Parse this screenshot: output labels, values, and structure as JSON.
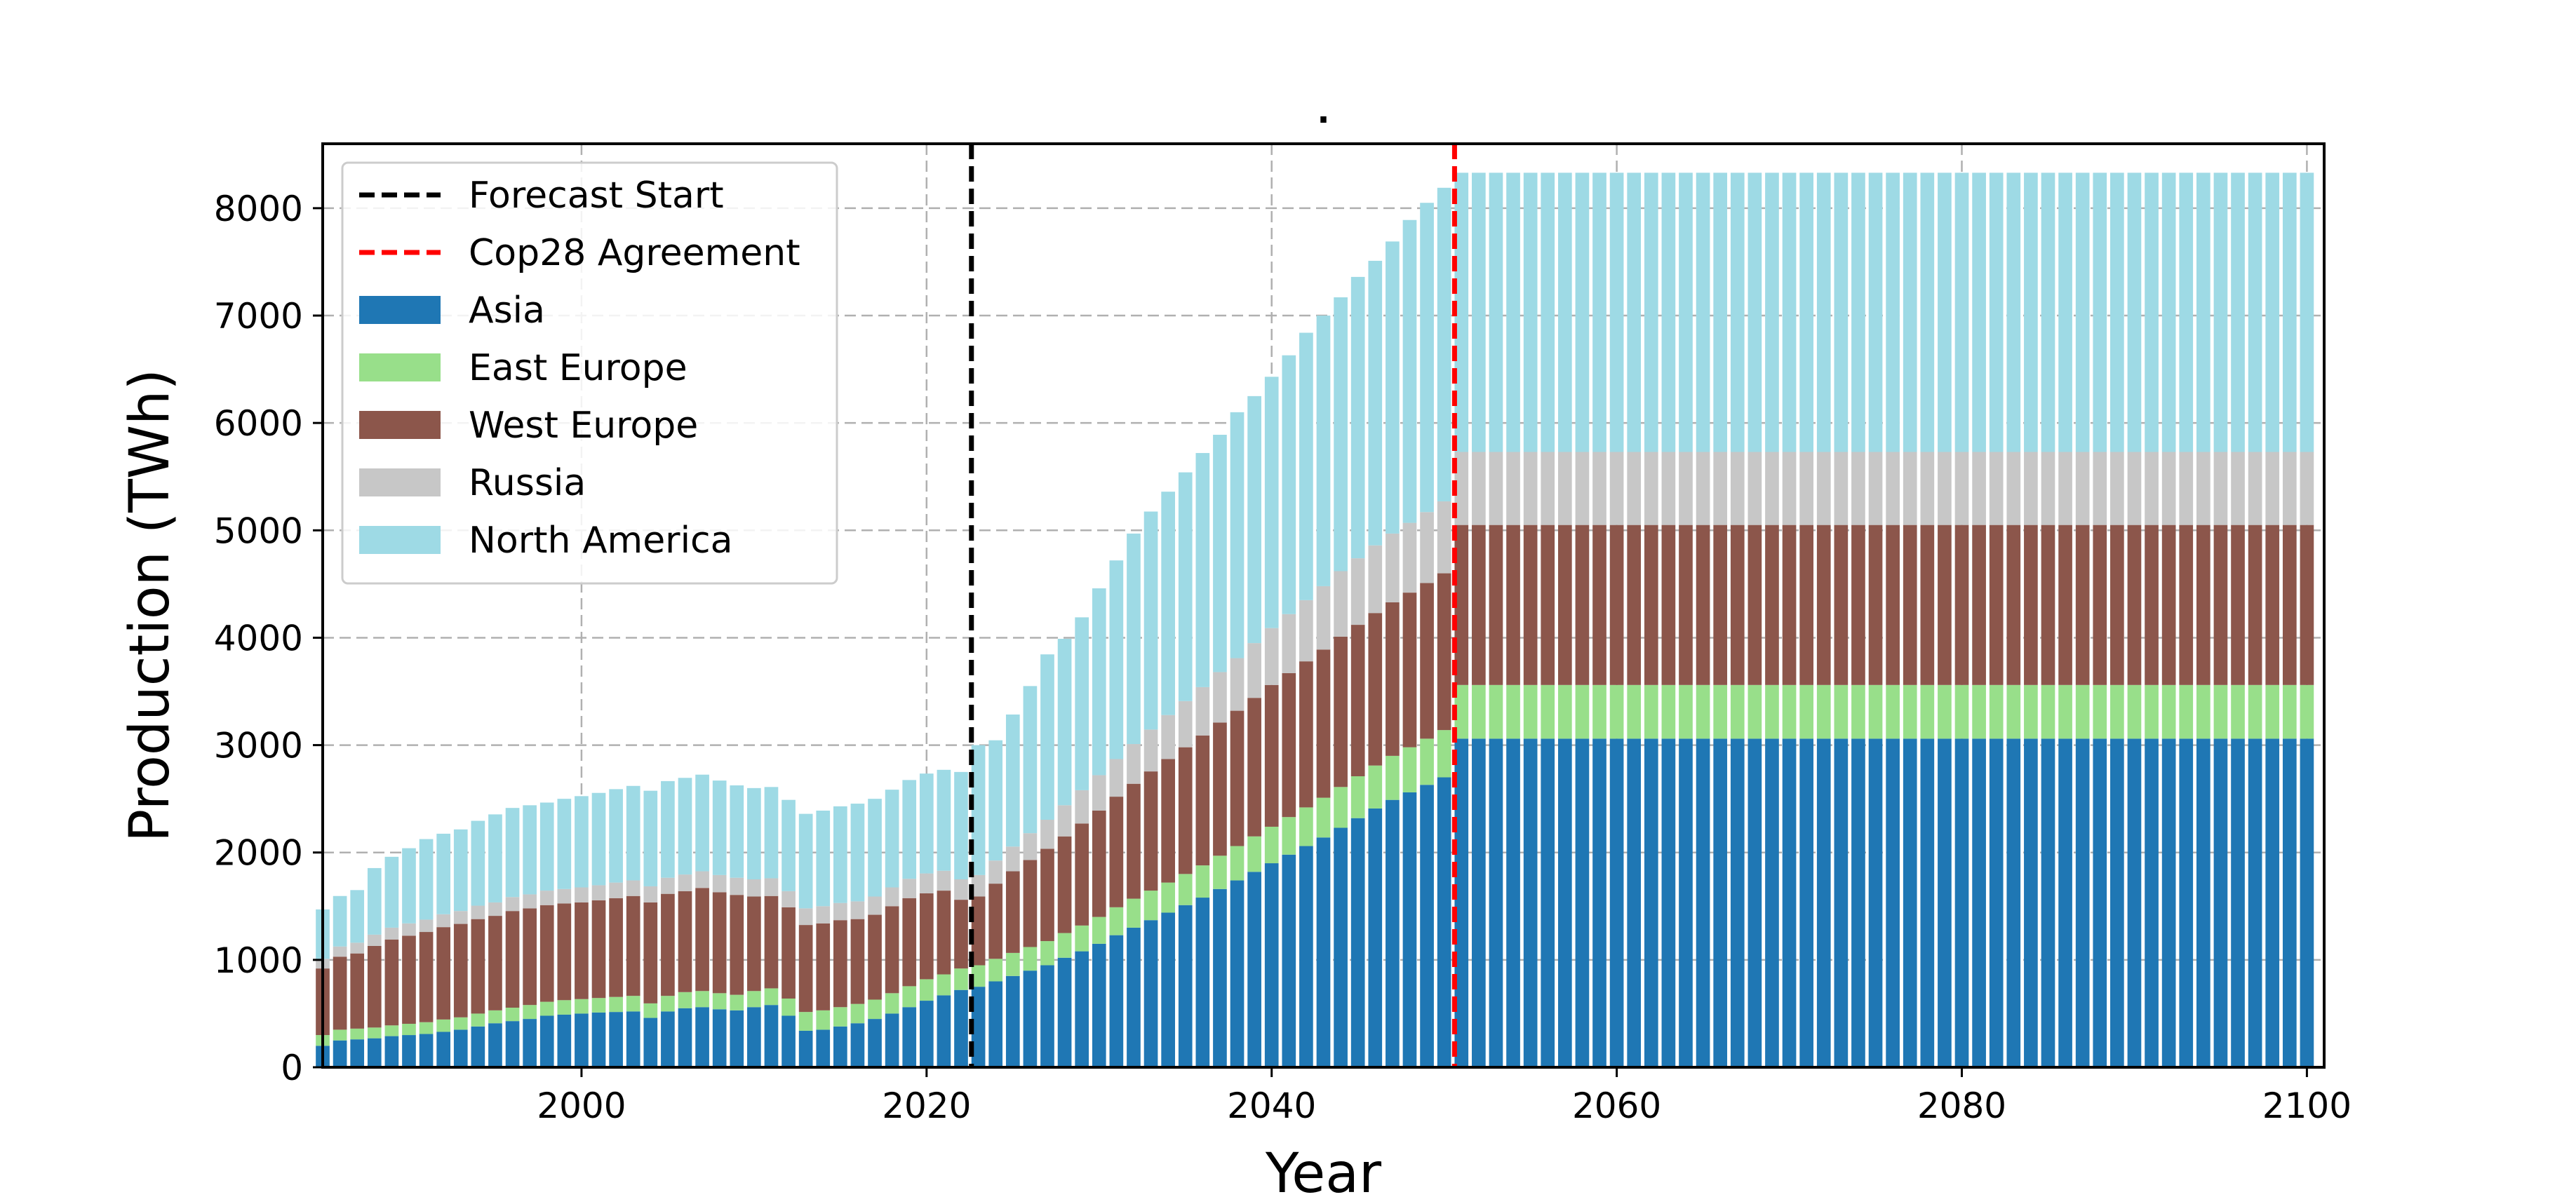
{
  "chart_data": {
    "type": "bar",
    "stacked": true,
    "title": ".",
    "xlabel": "Year",
    "ylabel": "Production (TWh)",
    "xlim": [
      1985,
      2101
    ],
    "ylim": [
      0,
      8600
    ],
    "xticks": [
      2000,
      2020,
      2040,
      2060,
      2080,
      2100
    ],
    "yticks": [
      0,
      1000,
      2000,
      3000,
      4000,
      5000,
      6000,
      7000,
      8000
    ],
    "grid": true,
    "legend_position": "top-left",
    "x_start": 1985,
    "x_end": 2100,
    "series": [
      {
        "name": "Asia",
        "color": "#1f77b4",
        "values": [
          200,
          250,
          260,
          270,
          290,
          300,
          310,
          330,
          350,
          380,
          410,
          430,
          450,
          480,
          490,
          500,
          510,
          515,
          520,
          460,
          520,
          550,
          560,
          540,
          530,
          560,
          580,
          480,
          340,
          350,
          380,
          410,
          450,
          500,
          560,
          620,
          670,
          720,
          750,
          800,
          850,
          900,
          950,
          1020,
          1080,
          1150,
          1230,
          1300,
          1370,
          1440,
          1510,
          1580,
          1660,
          1740,
          1820,
          1900,
          1980,
          2060,
          2140,
          2230,
          2320,
          2410,
          2490,
          2560,
          2630,
          2700,
          2780,
          2850,
          2930,
          3000,
          3070
        ]
      },
      {
        "name": "East Europe",
        "color": "#98df8a",
        "values": [
          100,
          100,
          100,
          100,
          100,
          105,
          110,
          115,
          115,
          120,
          120,
          125,
          130,
          130,
          135,
          135,
          135,
          140,
          145,
          135,
          145,
          150,
          150,
          150,
          145,
          150,
          155,
          160,
          175,
          180,
          180,
          180,
          180,
          190,
          195,
          200,
          195,
          200,
          200,
          210,
          215,
          220,
          225,
          230,
          240,
          250,
          260,
          270,
          275,
          280,
          290,
          300,
          310,
          320,
          330,
          340,
          350,
          360,
          370,
          380,
          390,
          400,
          410,
          420,
          430,
          440,
          450,
          460,
          470,
          480,
          490
        ]
      },
      {
        "name": "West Europe",
        "color": "#8c564b",
        "values": [
          620,
          680,
          700,
          760,
          800,
          820,
          840,
          860,
          870,
          880,
          880,
          900,
          900,
          900,
          900,
          900,
          910,
          920,
          930,
          940,
          950,
          940,
          960,
          940,
          930,
          880,
          860,
          850,
          810,
          810,
          810,
          790,
          790,
          810,
          820,
          800,
          780,
          640,
          640,
          700,
          760,
          810,
          860,
          900,
          950,
          990,
          1030,
          1070,
          1110,
          1150,
          1180,
          1210,
          1240,
          1260,
          1290,
          1320,
          1340,
          1360,
          1380,
          1400,
          1410,
          1420,
          1430,
          1440,
          1450,
          1460,
          1470,
          1480,
          1490,
          1490,
          1490
        ]
      },
      {
        "name": "Russia",
        "color": "#c7c7c7",
        "values": [
          90,
          95,
          100,
          105,
          110,
          115,
          115,
          120,
          120,
          125,
          125,
          130,
          130,
          135,
          135,
          140,
          140,
          145,
          145,
          150,
          150,
          155,
          155,
          160,
          160,
          160,
          165,
          150,
          155,
          160,
          160,
          165,
          170,
          175,
          180,
          185,
          185,
          190,
          200,
          215,
          230,
          250,
          270,
          290,
          310,
          330,
          350,
          370,
          390,
          410,
          430,
          450,
          470,
          490,
          510,
          530,
          550,
          570,
          590,
          610,
          620,
          630,
          640,
          650,
          660,
          670,
          680,
          690,
          700,
          700,
          700
        ]
      },
      {
        "name": "North America",
        "color": "#9edae5",
        "values": [
          460,
          470,
          490,
          620,
          660,
          700,
          750,
          750,
          760,
          790,
          820,
          830,
          830,
          820,
          840,
          850,
          860,
          870,
          880,
          890,
          900,
          900,
          900,
          880,
          860,
          850,
          850,
          850,
          880,
          890,
          900,
          910,
          910,
          910,
          920,
          930,
          940,
          1000,
          1210,
          1120,
          1230,
          1370,
          1540,
          1550,
          1610,
          1740,
          1850,
          1960,
          2030,
          2080,
          2130,
          2180,
          2210,
          2290,
          2300,
          2340,
          2410,
          2490,
          2520,
          2550,
          2620,
          2650,
          2720,
          2820,
          2880,
          2920,
          2960,
          3030,
          2980,
          2920,
          2570
        ]
      }
    ],
    "flat_after": 2051,
    "flat_values": {
      "Asia": 3060,
      "East Europe": 500,
      "West Europe": 1490,
      "Russia": 680,
      "North America": 2600
    },
    "vlines": [
      {
        "label": "Forecast Start",
        "x": 2022.6,
        "color": "#000000",
        "style": "dashed"
      },
      {
        "label": "Cop28 Agreement",
        "x": 2050.6,
        "color": "#ff0000",
        "style": "dashed"
      }
    ]
  }
}
